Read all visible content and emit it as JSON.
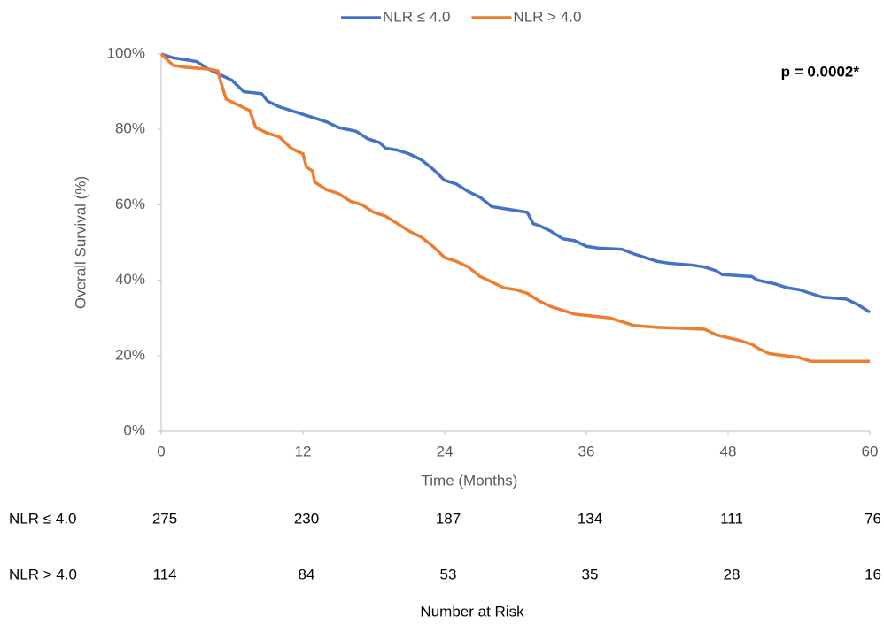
{
  "chart_data": {
    "type": "line",
    "x_label": "Time (Months)",
    "y_label": "Overall Survival (%)",
    "annotation": "p = 0.0002*",
    "xlim": [
      0,
      60
    ],
    "xticks": [
      0,
      12,
      24,
      36,
      48,
      60
    ],
    "ylim": [
      0,
      100
    ],
    "yticks": [
      {
        "value": 0,
        "label": "0%"
      },
      {
        "value": 20,
        "label": "20%"
      },
      {
        "value": 40,
        "label": "40%"
      },
      {
        "value": 60,
        "label": "60%"
      },
      {
        "value": 80,
        "label": "80%"
      },
      {
        "value": 100,
        "label": "100%"
      }
    ],
    "legend": "top",
    "series": [
      {
        "name": "NLR ≤ 4.0",
        "color": "#4472c4",
        "x": [
          0,
          1,
          2,
          3,
          4,
          5,
          6,
          7,
          8.5,
          9,
          10,
          11,
          12,
          13,
          14,
          15,
          16.5,
          17.5,
          18.5,
          19,
          20,
          21,
          22,
          23,
          24,
          25,
          26,
          27,
          28,
          29,
          30,
          31,
          31.5,
          32,
          33,
          34,
          35,
          36,
          37,
          39,
          40,
          41,
          42,
          43,
          45,
          46,
          47,
          47.5,
          50,
          50.5,
          52,
          53,
          54,
          55,
          56,
          58,
          59,
          60
        ],
        "values": [
          100,
          99,
          98.5,
          98,
          96,
          94.5,
          93,
          90,
          89.5,
          87.5,
          86,
          85,
          84,
          83,
          82,
          80.5,
          79.5,
          77.5,
          76.5,
          75,
          74.5,
          73.5,
          72,
          69.5,
          66.5,
          65.5,
          63.5,
          62,
          59.5,
          59,
          58.5,
          58,
          55,
          54.5,
          53,
          51,
          50.5,
          49,
          48.5,
          48.2,
          47,
          46,
          45,
          44.5,
          44,
          43.5,
          42.5,
          41.5,
          41,
          40,
          39,
          38,
          37.5,
          36.5,
          35.5,
          35,
          33.5,
          31.5
        ]
      },
      {
        "name": "NLR > 4.0",
        "color": "#ed7d31",
        "x": [
          0,
          1,
          2,
          4,
          4.8,
          5,
          5.5,
          6.5,
          7.5,
          8,
          9,
          10,
          11,
          12,
          12.3,
          12.8,
          13,
          14,
          15,
          16,
          17,
          18,
          19,
          20,
          21,
          22,
          23,
          24,
          25,
          26,
          27,
          28,
          29,
          30,
          31,
          32,
          33,
          34,
          35,
          38,
          40,
          42,
          46,
          47,
          49,
          50,
          50.5,
          51.5,
          54,
          55,
          60
        ],
        "values": [
          100,
          97,
          96.5,
          96,
          95.5,
          93,
          88,
          86.5,
          85,
          80.5,
          79,
          78,
          75,
          73.5,
          70,
          69,
          66,
          64,
          63,
          61,
          60,
          58,
          57,
          55,
          53,
          51.5,
          49,
          46,
          45,
          43.5,
          41,
          39.5,
          38,
          37.5,
          36.5,
          34.5,
          33,
          32,
          31,
          30,
          28,
          27.5,
          27,
          25.5,
          24,
          23,
          22,
          20.5,
          19.5,
          18.5,
          18.5
        ]
      }
    ],
    "risk_table": {
      "title": "Number at Risk",
      "rows": [
        {
          "label": "NLR ≤ 4.0",
          "values": [
            275,
            230,
            187,
            134,
            111,
            76
          ]
        },
        {
          "label": "NLR > 4.0",
          "values": [
            114,
            84,
            53,
            35,
            28,
            16
          ]
        }
      ]
    }
  }
}
